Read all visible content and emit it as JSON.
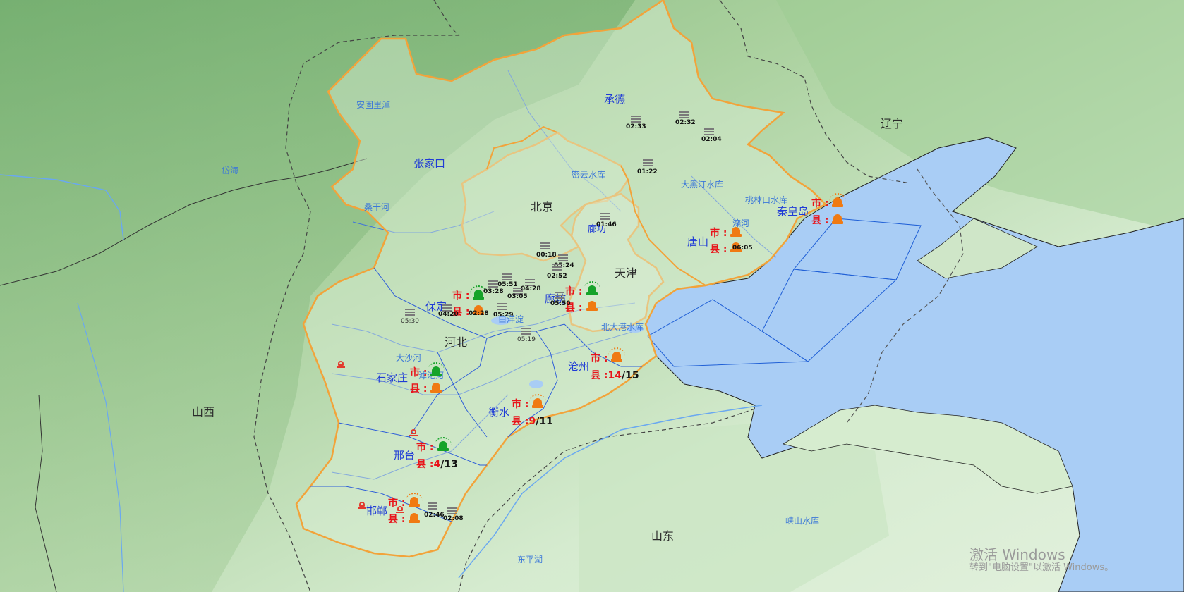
{
  "map": {
    "provinces": [
      {
        "id": "beijing",
        "text": "北京"
      },
      {
        "id": "tianjin",
        "text": "天津"
      },
      {
        "id": "hebei",
        "text": "河北"
      },
      {
        "id": "shanxi",
        "text": "山西"
      },
      {
        "id": "shandong",
        "text": "山东"
      },
      {
        "id": "liaoning",
        "text": "辽宁"
      }
    ],
    "cities": [
      {
        "id": "chengde",
        "text": "承德"
      },
      {
        "id": "zhangjiakou",
        "text": "张家口"
      },
      {
        "id": "qinhuangdao",
        "text": "秦皇岛"
      },
      {
        "id": "tangshan",
        "text": "唐山"
      },
      {
        "id": "langfang",
        "text": "廊坊"
      },
      {
        "id": "langfang2",
        "text": "廊坊"
      },
      {
        "id": "baoding",
        "text": "保定"
      },
      {
        "id": "shijiazhuang",
        "text": "石家庄"
      },
      {
        "id": "cangzhou",
        "text": "沧州"
      },
      {
        "id": "hengshui",
        "text": "衡水"
      },
      {
        "id": "xingtai",
        "text": "邢台"
      },
      {
        "id": "handan",
        "text": "邯郸"
      }
    ],
    "water_labels": [
      {
        "id": "anguli",
        "text": "安固里淖"
      },
      {
        "id": "daihai",
        "text": "岱海"
      },
      {
        "id": "sanggan",
        "text": "桑干河"
      },
      {
        "id": "miyun",
        "text": "密云水库"
      },
      {
        "id": "daheiting",
        "text": "大黑汀水库"
      },
      {
        "id": "taolinkou",
        "text": "桃林口水库"
      },
      {
        "id": "luanhe",
        "text": "滦河"
      },
      {
        "id": "baiyangdian",
        "text": "白洋淀"
      },
      {
        "id": "beidagang",
        "text": "北大港水库"
      },
      {
        "id": "dashahe",
        "text": "大沙河"
      },
      {
        "id": "hutuo",
        "text": "滹沱河"
      },
      {
        "id": "dongpinghu",
        "text": "东平湖"
      },
      {
        "id": "xiashan",
        "text": "峡山水库"
      }
    ],
    "alerts": [
      {
        "id": "qinhuangdao",
        "city_label": "市 :",
        "county_label": "县 :",
        "county_count_red": "",
        "county_count_black": "",
        "city_siren": "orange",
        "county_siren": "orange"
      },
      {
        "id": "tangshan",
        "city_label": "市 :",
        "county_label": "县 :",
        "county_count_red": "",
        "county_count_black": "",
        "city_siren": "orange",
        "county_siren": "orange"
      },
      {
        "id": "langfang",
        "city_label": "市 :",
        "county_label": "县 :",
        "county_count_red": "",
        "county_count_black": "",
        "city_siren": "green",
        "county_siren": "orange"
      },
      {
        "id": "baoding",
        "city_label": "市 :",
        "county_label": "县 :",
        "county_count_red": "",
        "county_count_black": "",
        "city_siren": "green",
        "county_siren": "orange"
      },
      {
        "id": "shijiazhuang",
        "city_label": "市 :",
        "county_label": "县 :",
        "county_count_red": "",
        "county_count_black": "",
        "city_siren": "green",
        "county_siren": "orange"
      },
      {
        "id": "cangzhou",
        "city_label": "市 :",
        "county_label": "县 :",
        "county_count_red": "14",
        "county_count_black": "/15",
        "city_siren": "orange",
        "county_siren": ""
      },
      {
        "id": "hengshui",
        "city_label": "市 :",
        "county_label": "县 :",
        "county_count_red": "9",
        "county_count_black": "/11",
        "city_siren": "orange",
        "county_siren": ""
      },
      {
        "id": "xingtai",
        "city_label": "市 :",
        "county_label": "县 :",
        "county_count_red": "4",
        "county_count_black": "/13",
        "city_siren": "green",
        "county_siren": ""
      },
      {
        "id": "handan",
        "city_label": "市 :",
        "county_label": "县 :",
        "county_count_red": "",
        "county_count_black": "",
        "city_siren": "orange",
        "county_siren": "orange"
      }
    ],
    "station_times": [
      "02:33",
      "02:32",
      "02:04",
      "01:22",
      "01:46",
      "06:05",
      "00:18",
      "05:24",
      "02:52",
      "05:51",
      "04:28",
      "03:28",
      "03:05",
      "05:50",
      "04:20",
      "02:28",
      "05:29",
      "05:30",
      "05:19",
      "02:46",
      "02:08"
    ],
    "colors": {
      "land_low": "#dcefd6",
      "land_high": "#8fbf86",
      "sea": "#a9cdf5",
      "hebei_border": "#f2a33a",
      "county_border": "#555555",
      "river": "#3c6fe0",
      "siren_orange": "#f07a12",
      "siren_green": "#16a32a",
      "alert_red": "#e8141a"
    }
  },
  "watermark": {
    "title": "激活 Windows",
    "subtitle": "转到\"电脑设置\"以激活 Windows。"
  }
}
